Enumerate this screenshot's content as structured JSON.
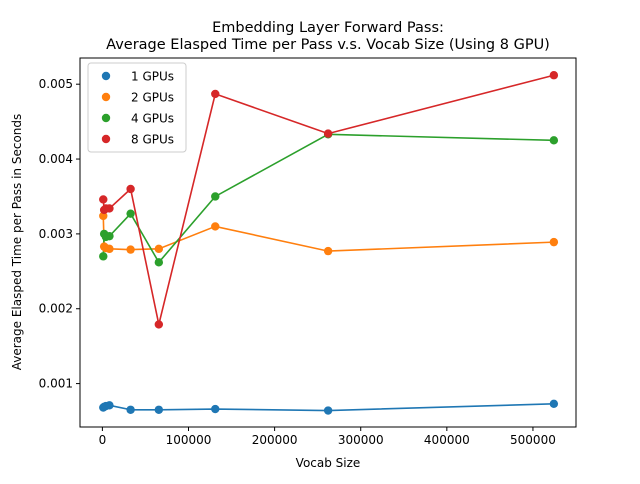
{
  "chart_data": {
    "type": "line",
    "title_line1": "Embedding Layer Forward Pass:",
    "title_line2": "Average Elasped Time per Pass v.s. Vocab Size (Using 8 GPU)",
    "xlabel": "Vocab Size",
    "ylabel": "Average Elasped Time per Pass in Seconds",
    "xlim": [
      -26000,
      550000
    ],
    "ylim": [
      0.00042,
      0.00535
    ],
    "xticks": [
      0,
      100000,
      200000,
      300000,
      400000,
      500000
    ],
    "xtick_labels": [
      "0",
      "100000",
      "200000",
      "300000",
      "400000",
      "500000"
    ],
    "yticks": [
      0.001,
      0.002,
      0.003,
      0.004,
      0.005
    ],
    "ytick_labels": [
      "0.001",
      "0.002",
      "0.003",
      "0.004",
      "0.005"
    ],
    "legend_position": "top-left",
    "grid": false,
    "series": [
      {
        "name": "1 GPUs",
        "color": "#1f77b4",
        "x": [
          1024,
          2048,
          4096,
          8192,
          32768,
          65536,
          131072,
          262144,
          524288
        ],
        "y": [
          0.00068,
          0.00069,
          0.0007,
          0.00071,
          0.00065,
          0.00065,
          0.00066,
          0.00064,
          0.00073
        ]
      },
      {
        "name": "2 GPUs",
        "color": "#ff7f0e",
        "x": [
          1024,
          2048,
          4096,
          8192,
          32768,
          65536,
          131072,
          262144,
          524288
        ],
        "y": [
          0.00324,
          0.00283,
          0.00281,
          0.0028,
          0.00279,
          0.0028,
          0.0031,
          0.00277,
          0.00289
        ]
      },
      {
        "name": "4 GPUs",
        "color": "#2ca02c",
        "x": [
          1024,
          2048,
          4096,
          8192,
          32768,
          65536,
          131072,
          262144,
          524288
        ],
        "y": [
          0.0027,
          0.003,
          0.00296,
          0.00297,
          0.00327,
          0.00262,
          0.0035,
          0.00433,
          0.00425
        ]
      },
      {
        "name": "8 GPUs",
        "color": "#d62728",
        "x": [
          1024,
          2048,
          4096,
          8192,
          32768,
          65536,
          131072,
          262144,
          524288
        ],
        "y": [
          0.00346,
          0.00332,
          0.00334,
          0.00334,
          0.0036,
          0.00179,
          0.00487,
          0.00434,
          0.00512
        ]
      }
    ]
  }
}
